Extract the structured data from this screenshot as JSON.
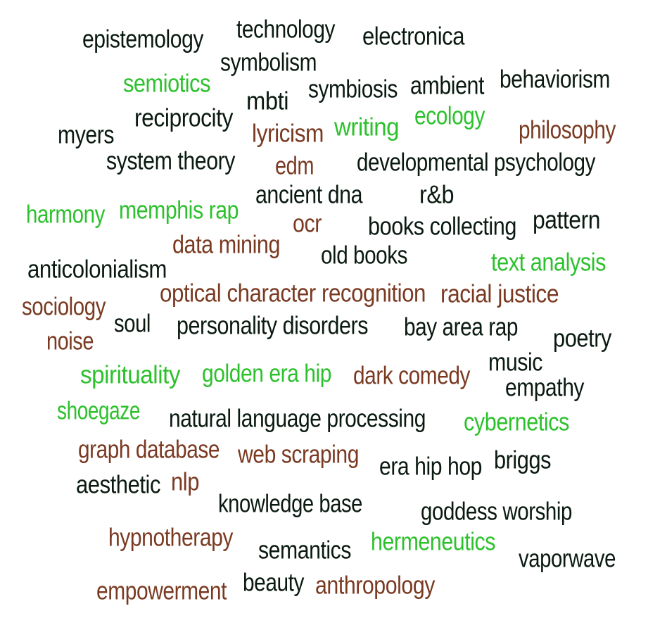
{
  "colors": {
    "dark": "#0a1a10",
    "green": "#2cc12c",
    "brown": "#7a3a22"
  },
  "words": [
    {
      "text": "epistemology",
      "color": "dark"
    },
    {
      "text": "technology",
      "color": "dark"
    },
    {
      "text": "electronica",
      "color": "dark"
    },
    {
      "text": "symbolism",
      "color": "dark"
    },
    {
      "text": "semiotics",
      "color": "green"
    },
    {
      "text": "symbiosis",
      "color": "dark"
    },
    {
      "text": "ambient",
      "color": "dark"
    },
    {
      "text": "behaviorism",
      "color": "dark"
    },
    {
      "text": "mbti",
      "color": "dark"
    },
    {
      "text": "reciprocity",
      "color": "dark"
    },
    {
      "text": "myers",
      "color": "dark"
    },
    {
      "text": "lyricism",
      "color": "brown"
    },
    {
      "text": "writing",
      "color": "green"
    },
    {
      "text": "ecology",
      "color": "green"
    },
    {
      "text": "philosophy",
      "color": "brown"
    },
    {
      "text": "system theory",
      "color": "dark"
    },
    {
      "text": "edm",
      "color": "brown"
    },
    {
      "text": "developmental psychology",
      "color": "dark"
    },
    {
      "text": "ancient dna",
      "color": "dark"
    },
    {
      "text": "r&b",
      "color": "dark"
    },
    {
      "text": "harmony",
      "color": "green"
    },
    {
      "text": "memphis rap",
      "color": "green"
    },
    {
      "text": "ocr",
      "color": "brown"
    },
    {
      "text": "books collecting",
      "color": "dark"
    },
    {
      "text": "pattern",
      "color": "dark"
    },
    {
      "text": "data mining",
      "color": "brown"
    },
    {
      "text": "old books",
      "color": "dark"
    },
    {
      "text": "text analysis",
      "color": "green"
    },
    {
      "text": "anticolonialism",
      "color": "dark"
    },
    {
      "text": "optical character recognition",
      "color": "brown"
    },
    {
      "text": "racial justice",
      "color": "brown"
    },
    {
      "text": "sociology",
      "color": "brown"
    },
    {
      "text": "soul",
      "color": "dark"
    },
    {
      "text": "personality disorders",
      "color": "dark"
    },
    {
      "text": "bay area rap",
      "color": "dark"
    },
    {
      "text": "poetry",
      "color": "dark"
    },
    {
      "text": "noise",
      "color": "brown"
    },
    {
      "text": "music",
      "color": "dark"
    },
    {
      "text": "spirituality",
      "color": "green"
    },
    {
      "text": "golden era hip",
      "color": "green"
    },
    {
      "text": "dark comedy",
      "color": "brown"
    },
    {
      "text": "empathy",
      "color": "dark"
    },
    {
      "text": "shoegaze",
      "color": "green"
    },
    {
      "text": "natural language processing",
      "color": "dark"
    },
    {
      "text": "cybernetics",
      "color": "green"
    },
    {
      "text": "graph database",
      "color": "brown"
    },
    {
      "text": "web scraping",
      "color": "brown"
    },
    {
      "text": "era hip hop",
      "color": "dark"
    },
    {
      "text": "briggs",
      "color": "dark"
    },
    {
      "text": "aesthetic",
      "color": "dark"
    },
    {
      "text": "nlp",
      "color": "brown"
    },
    {
      "text": "knowledge base",
      "color": "dark"
    },
    {
      "text": "goddess worship",
      "color": "dark"
    },
    {
      "text": "hypnotherapy",
      "color": "brown"
    },
    {
      "text": "semantics",
      "color": "dark"
    },
    {
      "text": "hermeneutics",
      "color": "green"
    },
    {
      "text": "vaporwave",
      "color": "dark"
    },
    {
      "text": "empowerment",
      "color": "brown"
    },
    {
      "text": "beauty",
      "color": "dark"
    },
    {
      "text": "anthropology",
      "color": "brown"
    }
  ]
}
